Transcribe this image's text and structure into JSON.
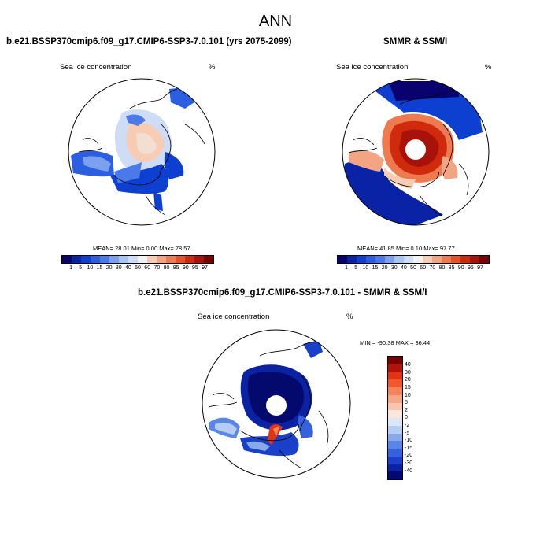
{
  "figure": {
    "title": "ANN"
  },
  "panel_model": {
    "title": "b.e21.BSSP370cmip6.f09_g17.CMIP6-SSP3-7.0.101 (yrs 2075-2099)",
    "left_label": "Sea ice concentration",
    "right_label": "%",
    "stats": "MEAN=  28.01  Min=   0.00  Max=  78.57",
    "colorbar_labels": [
      "1",
      "5",
      "10",
      "15",
      "20",
      "30",
      "40",
      "50",
      "60",
      "70",
      "80",
      "85",
      "90",
      "95",
      "97"
    ],
    "colorbar_colors": [
      "#08016e",
      "#0a22a6",
      "#0d3fd0",
      "#2c5ee2",
      "#4a7aea",
      "#7aa0ee",
      "#a6c3f2",
      "#cfdcf5",
      "#f3f3f3",
      "#f6ccb5",
      "#f3a583",
      "#ee7a52",
      "#e85125",
      "#d02a0c",
      "#a8120a",
      "#7a0000"
    ]
  },
  "panel_obs": {
    "title": "SMMR & SSM/I",
    "left_label": "Sea ice concentration",
    "right_label": "%",
    "stats": "MEAN=  41.85  Min=   0.10  Max=  97.77",
    "colorbar_labels": [
      "1",
      "5",
      "10",
      "15",
      "20",
      "30",
      "40",
      "50",
      "60",
      "70",
      "80",
      "85",
      "90",
      "95",
      "97"
    ],
    "colorbar_colors": [
      "#08016e",
      "#0a22a6",
      "#0d3fd0",
      "#2c5ee2",
      "#4a7aea",
      "#7aa0ee",
      "#a6c3f2",
      "#cfdcf5",
      "#f3f3f3",
      "#f6ccb5",
      "#f3a583",
      "#ee7a52",
      "#e85125",
      "#d02a0c",
      "#a8120a",
      "#7a0000"
    ]
  },
  "panel_diff": {
    "title": "b.e21.BSSP370cmip6.f09_g17.CMIP6-SSP3-7.0.101 - SMMR & SSM/I",
    "left_label": "Sea ice concentration",
    "right_label": "%",
    "stats": "MIN = -90.38 MAX =  36.44",
    "colorbar_labels": [
      "40",
      "30",
      "20",
      "15",
      "10",
      "5",
      "2",
      "0",
      "-2",
      "-5",
      "-10",
      "-15",
      "-20",
      "-30",
      "-40"
    ],
    "colorbar_colors": [
      "#7a0000",
      "#b31208",
      "#e03412",
      "#f05a2a",
      "#f4845a",
      "#f6a786",
      "#f7c6ae",
      "#fae6dc",
      "#dbe6f6",
      "#b5cdf2",
      "#86aaec",
      "#5a86e6",
      "#3562dc",
      "#1a3fc8",
      "#0b22a2",
      "#04096e"
    ]
  }
}
